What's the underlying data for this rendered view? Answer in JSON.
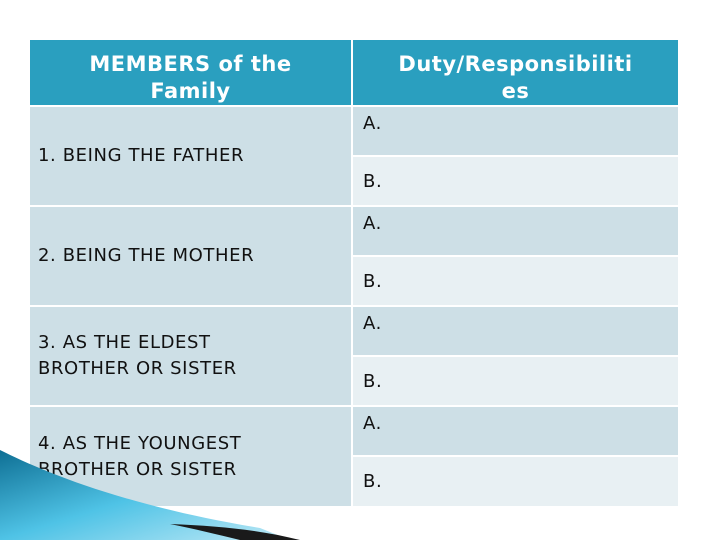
{
  "table": {
    "headers": [
      "MEMBERS of the Family",
      "Duty/Responsibilities"
    ],
    "header_lines": {
      "members": [
        "MEMBERS of the",
        "Family"
      ],
      "duty": [
        "Duty/Responsibiliti",
        "es"
      ]
    },
    "rows": [
      {
        "member": "1. BEING THE FATHER",
        "member_lines": [
          "1. BEING THE FATHER"
        ],
        "duty_a": "A.",
        "duty_b": "B."
      },
      {
        "member": "2. BEING THE MOTHER",
        "member_lines": [
          "2. BEING THE MOTHER"
        ],
        "duty_a": "A.",
        "duty_b": "B."
      },
      {
        "member": "3. AS THE ELDEST BROTHER OR SISTER",
        "member_lines": [
          "3. AS THE ELDEST",
          "BROTHER OR SISTER"
        ],
        "duty_a": "A.",
        "duty_b": "B."
      },
      {
        "member": "4. AS THE YOUNGEST BROTHER OR SISTER",
        "member_lines": [
          "4. AS THE YOUNGEST",
          "BROTHER OR SISTER"
        ],
        "duty_a": "A.",
        "duty_b": "B."
      }
    ]
  },
  "colors": {
    "header_bg": "#2a9fbf",
    "row_dark": "#cddfe6",
    "row_light": "#e8f0f3",
    "deco_blue": "#2a9fbf",
    "deco_dark": "#1a1a1a"
  }
}
